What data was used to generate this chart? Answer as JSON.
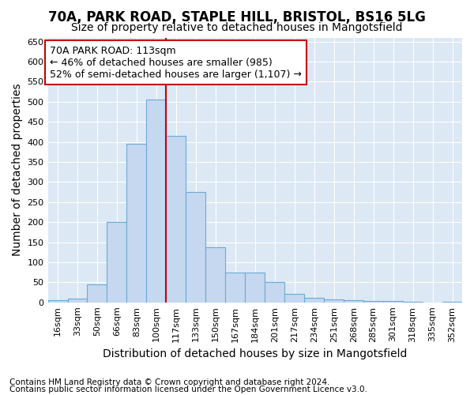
{
  "title1": "70A, PARK ROAD, STAPLE HILL, BRISTOL, BS16 5LG",
  "title2": "Size of property relative to detached houses in Mangotsfield",
  "xlabel": "Distribution of detached houses by size in Mangotsfield",
  "ylabel": "Number of detached properties",
  "categories": [
    "16sqm",
    "33sqm",
    "50sqm",
    "66sqm",
    "83sqm",
    "100sqm",
    "117sqm",
    "133sqm",
    "150sqm",
    "167sqm",
    "184sqm",
    "201sqm",
    "217sqm",
    "234sqm",
    "251sqm",
    "268sqm",
    "285sqm",
    "301sqm",
    "318sqm",
    "335sqm",
    "352sqm"
  ],
  "values": [
    5,
    10,
    45,
    200,
    395,
    505,
    415,
    275,
    138,
    75,
    75,
    50,
    22,
    12,
    8,
    5,
    3,
    3,
    1,
    0,
    2
  ],
  "bar_color": "#c5d8f0",
  "bar_edge_color": "#6aaad4",
  "vline_color": "#cc0000",
  "vline_pos": 5.5,
  "annotation_text_line1": "70A PARK ROAD: 113sqm",
  "annotation_text_line2": "← 46% of detached houses are smaller (985)",
  "annotation_text_line3": "52% of semi-detached houses are larger (1,107) →",
  "annotation_box_color": "#ffffff",
  "annotation_box_edge": "#cc0000",
  "ylim": [
    0,
    660
  ],
  "yticks": [
    0,
    50,
    100,
    150,
    200,
    250,
    300,
    350,
    400,
    450,
    500,
    550,
    600,
    650
  ],
  "footer1": "Contains HM Land Registry data © Crown copyright and database right 2024.",
  "footer2": "Contains public sector information licensed under the Open Government Licence v3.0.",
  "background_color": "#dde8f5",
  "grid_color": "#ffffff",
  "fig_bg_color": "#ffffff",
  "title1_fontsize": 12,
  "title2_fontsize": 10,
  "axis_label_fontsize": 10,
  "tick_fontsize": 8,
  "footer_fontsize": 7.5,
  "annotation_fontsize": 9
}
